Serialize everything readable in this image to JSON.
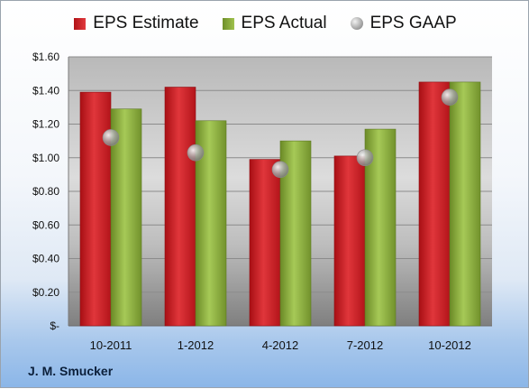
{
  "chart_data": {
    "type": "bar",
    "categories": [
      "10-2011",
      "1-2012",
      "4-2012",
      "7-2012",
      "10-2012"
    ],
    "series": [
      {
        "name": "EPS Estimate",
        "kind": "bar",
        "values": [
          1.39,
          1.42,
          0.99,
          1.01,
          1.45
        ],
        "color": "#c8161d"
      },
      {
        "name": "EPS Actual",
        "kind": "bar",
        "values": [
          1.29,
          1.22,
          1.1,
          1.17,
          1.45
        ],
        "color": "#8aaf3c"
      },
      {
        "name": "EPS GAAP",
        "kind": "marker",
        "values": [
          1.12,
          1.03,
          0.93,
          1.0,
          1.36
        ],
        "color": "#9a9a9a"
      }
    ],
    "ylim": [
      0,
      1.6
    ],
    "yticks": [
      0,
      0.2,
      0.4,
      0.6,
      0.8,
      1.0,
      1.2,
      1.4,
      1.6
    ],
    "ytick_labels": [
      "$-",
      "$0.20",
      "$0.40",
      "$0.60",
      "$0.80",
      "$1.00",
      "$1.20",
      "$1.40",
      "$1.60"
    ],
    "grid": true,
    "legend_position": "top"
  },
  "legend": {
    "estimate": "EPS Estimate",
    "actual": "EPS Actual",
    "gaap": "EPS GAAP"
  },
  "footer": {
    "company": "J. M. Smucker"
  }
}
